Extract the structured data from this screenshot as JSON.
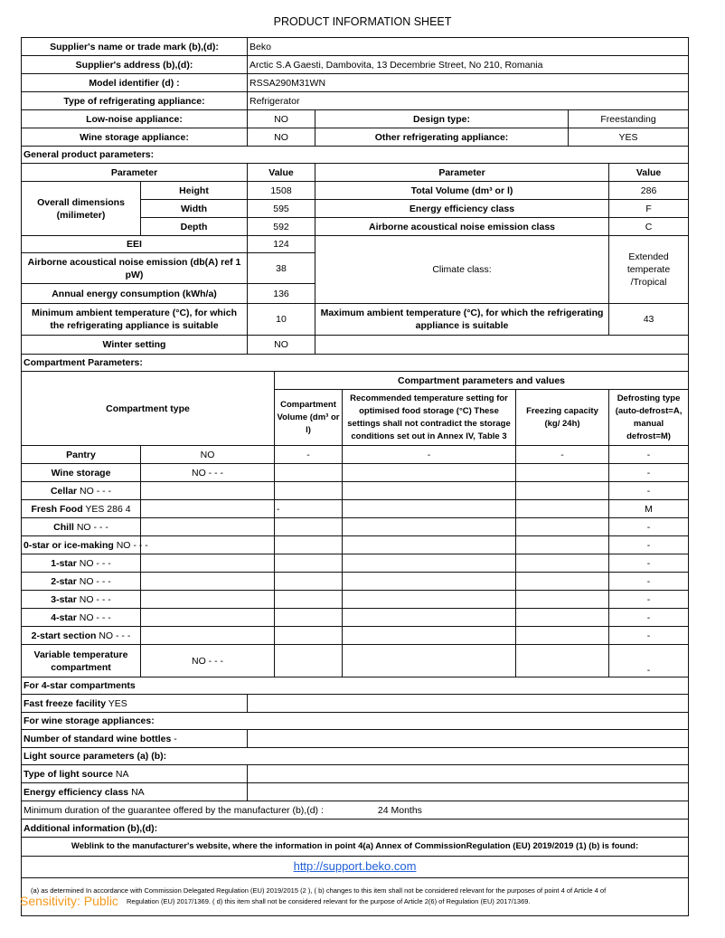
{
  "title": "PRODUCT INFORMATION SHEET",
  "supplier": {
    "name_label": "Supplier's name or trade mark (b),(d):",
    "name": "Beko",
    "address_label": "Supplier's address (b),(d):",
    "address": "Arctic S.A Gaesti, Dambovita, 13 Decembrie Street, No 210, Romania",
    "model_label": "Model identifier (d) :",
    "model": "RSSA290M31WN",
    "type_label": "Type of refrigerating appliance:",
    "type": "Refrigerator"
  },
  "low_noise": {
    "label": "Low-noise appliance:",
    "value": "NO",
    "design_label": "Design type:",
    "design": "Freestanding"
  },
  "wine": {
    "label": "Wine storage appliance:",
    "value": "NO",
    "other_label": "Other refrigerating appliance:",
    "other": "YES"
  },
  "general": {
    "heading": "General product  parameters:",
    "param_h": "Parameter",
    "value_h": "Value",
    "dims_label": "Overall dimensions (milimeter)",
    "height_label": "Height",
    "height": "1508",
    "width_label": "Width",
    "width": "595",
    "depth_label": "Depth",
    "depth": "592",
    "total_vol_label": "Total Volume (dm³ or l)",
    "total_vol": "286",
    "eec_label": "Energy efficiency class",
    "eec": "F",
    "noise_class_label": "Airborne acoustical noise emission class",
    "noise_class": "C",
    "eei_label": "EEI",
    "eei": "124",
    "noise_label": "Airborne acoustical noise emission (db(A) ref 1 pW)",
    "noise": "38",
    "climate_label": "Climate class:",
    "climate": "Extended temperate /Tropical",
    "annual_label": "Annual energy consumption (kWh/a)",
    "annual": "136",
    "min_amb_label": "Minimum ambient temperature (°C), for which the refrigerating appliance is suitable",
    "min_amb": "10",
    "max_amb_label": "Maximum ambient temperature (°C), for  which the  refrigerating appliance is suitable",
    "max_amb": "43",
    "winter_label": "Winter setting",
    "winter": "NO"
  },
  "compartments": {
    "heading": "Compartment Parameters:",
    "type_h": "Compartment type",
    "values_h": "Compartment parameters and values",
    "vol_h": "Compartment Volume (dm³ or l)",
    "rec_h": "Recommended  temperature setting for optimised food storage (°C) These settings shall not contradict the storage conditions set out  in Annex IV, Table 3",
    "freeze_h": "Freezing capacity (kg/ 24h)",
    "defrost_h": "Defrosting type (auto-defrost=A, manual defrost=M)",
    "rows": [
      {
        "name": "Pantry",
        "suffix": "",
        "value": "NO",
        "vol": "-",
        "rec": "-",
        "freeze": "-",
        "defrost": "-"
      },
      {
        "name": "Wine storage",
        "suffix": "",
        "value": "NO - - -",
        "vol": "",
        "rec": "",
        "freeze": "",
        "defrost": "-"
      },
      {
        "name": "Cellar",
        "suffix": " NO - - -",
        "value": "",
        "vol": "",
        "rec": "",
        "freeze": "",
        "defrost": "-"
      },
      {
        "name": "Fresh Food",
        "suffix": " YES 286 4",
        "value": "",
        "vol": "-",
        "rec": "",
        "freeze": "",
        "defrost": "M"
      },
      {
        "name": "Chill",
        "suffix": " NO - - -",
        "value": "",
        "vol": "",
        "rec": "",
        "freeze": "",
        "defrost": "-"
      },
      {
        "name": "0-star or ice-making",
        "suffix": " NO - - -",
        "value": "",
        "vol": "",
        "rec": "",
        "freeze": "",
        "defrost": "-"
      },
      {
        "name": "1-star",
        "suffix": " NO - - -",
        "value": "",
        "vol": "",
        "rec": "",
        "freeze": "",
        "defrost": "-"
      },
      {
        "name": "2-star",
        "suffix": " NO - - -",
        "value": "",
        "vol": "",
        "rec": "",
        "freeze": "",
        "defrost": "-"
      },
      {
        "name": "3-star",
        "suffix": " NO - - -",
        "value": "",
        "vol": "",
        "rec": "",
        "freeze": "",
        "defrost": "-"
      },
      {
        "name": "4-star",
        "suffix": " NO - - -",
        "value": "",
        "vol": "",
        "rec": "",
        "freeze": "",
        "defrost": "-"
      },
      {
        "name": "2-start section",
        "suffix": " NO - - -",
        "value": "",
        "vol": "",
        "rec": "",
        "freeze": "",
        "defrost": "-"
      },
      {
        "name": "Variable temperature compartment",
        "suffix": "",
        "value": "NO - - -",
        "vol": "",
        "rec": "",
        "freeze": "",
        "defrost": "-"
      }
    ]
  },
  "four_star": {
    "heading": "For 4-star compartments",
    "fast_label": "Fast freeze facility",
    "fast": "YES"
  },
  "wine_app": {
    "heading": "For wine storage appliances:",
    "bottles_label": "Number of standard wine bottles",
    "bottles": "-"
  },
  "light": {
    "heading": "Light source parameters (a) (b):",
    "type_label": "Type of light source",
    "type": "NA",
    "eec_label": "Energy efficiency class",
    "eec": "NA"
  },
  "guarantee": {
    "label": "Minimum duration of the  guarantee offered  by the  manufacturer (b),(d) :",
    "value": "24 Months"
  },
  "additional_label": "Additional information (b),(d):",
  "weblink_label": "Weblink to the  manufacturer's website, where the information  in point 4(a) Annex of CommissionRegulation (EU) 2019/2019 (1) (b) is found:",
  "weblink": "http://support.beko.com",
  "footnote1": "(a)   as determined  In accordance with Commission  Delegated  Regulation (EU) 2019/2015 (2 ), ( b)  changes to this item shall not be considered relevant for the purposes of point 4 of Article 4 of",
  "footnote2": "Regulation  (EU) 2017/1369. ( d)  this item shall not  be considered relevant for the  purpose of Article 2(6) of Regulation  (EU) 2017/1369.",
  "sensitivity": "Sensitivity: Public",
  "colors": {
    "link": "#1f5fd6",
    "sensitivity": "#f39a1e"
  }
}
